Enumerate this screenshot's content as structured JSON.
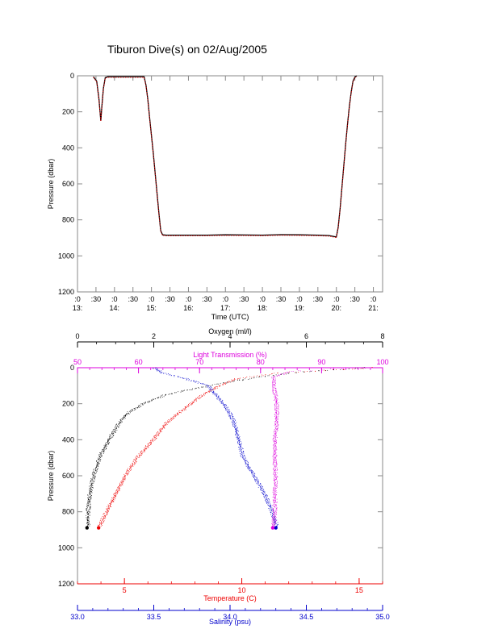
{
  "title": "Tiburon Dive(s) on 02/Aug/2005",
  "colors": {
    "black": "#000000",
    "red": "#ee0000",
    "blue": "#0000cc",
    "magenta": "#dd00dd"
  },
  "chart_data": [
    {
      "type": "line",
      "xlabel": "Time (UTC)",
      "ylabel": "Pressure (dbar)",
      "ylim": [
        1200,
        0
      ],
      "yticks": [
        "0",
        "200",
        "400",
        "600",
        "800",
        "1000",
        "1200"
      ],
      "xlim": [
        13.0,
        21.25
      ],
      "xticks": [
        {
          "x": 13.0,
          "top": ":0",
          "bottom": "13:"
        },
        {
          "x": 13.5,
          "top": ":30",
          "bottom": ""
        },
        {
          "x": 14.0,
          "top": ":0",
          "bottom": "14:"
        },
        {
          "x": 14.5,
          "top": ":30",
          "bottom": ""
        },
        {
          "x": 15.0,
          "top": ":0",
          "bottom": "15:"
        },
        {
          "x": 15.5,
          "top": ":30",
          "bottom": ""
        },
        {
          "x": 16.0,
          "top": ":0",
          "bottom": "16:"
        },
        {
          "x": 16.5,
          "top": ":30",
          "bottom": ""
        },
        {
          "x": 17.0,
          "top": ":0",
          "bottom": "17:"
        },
        {
          "x": 17.5,
          "top": ":30",
          "bottom": ""
        },
        {
          "x": 18.0,
          "top": ":0",
          "bottom": "18:"
        },
        {
          "x": 18.5,
          "top": ":30",
          "bottom": ""
        },
        {
          "x": 19.0,
          "top": ":0",
          "bottom": "19:"
        },
        {
          "x": 19.5,
          "top": ":30",
          "bottom": ""
        },
        {
          "x": 20.0,
          "top": ":0",
          "bottom": "20:"
        },
        {
          "x": 20.5,
          "top": ":30",
          "bottom": ""
        },
        {
          "x": 21.0,
          "top": ":0",
          "bottom": "21:"
        }
      ],
      "series": [
        {
          "color": "black",
          "x": [
            13.43,
            13.52,
            13.58,
            13.63,
            13.66,
            13.7,
            13.75,
            13.82,
            14.0,
            14.3,
            14.5,
            14.8,
            14.85,
            14.9,
            14.95,
            15.0,
            15.05,
            15.1,
            15.15,
            15.2,
            15.25,
            15.3,
            15.4,
            15.6,
            16.0,
            16.5,
            17.0,
            17.5,
            18.0,
            18.5,
            19.0,
            19.5,
            19.8,
            20.0,
            20.05,
            20.1,
            20.15,
            20.2,
            20.25,
            20.3,
            20.35,
            20.4,
            20.45,
            20.5,
            20.55
          ],
          "y": [
            5,
            30,
            130,
            250,
            170,
            70,
            10,
            5,
            5,
            5,
            5,
            5,
            50,
            130,
            230,
            330,
            430,
            540,
            650,
            760,
            860,
            883,
            885,
            885,
            885,
            885,
            883,
            884,
            885,
            882,
            883,
            885,
            887,
            895,
            840,
            740,
            620,
            500,
            380,
            270,
            170,
            90,
            30,
            8,
            0
          ]
        },
        {
          "color": "red",
          "x": [
            13.43,
            13.52,
            13.58,
            13.63,
            13.66,
            13.7,
            13.75,
            13.82,
            14.0,
            14.3,
            14.5,
            14.8,
            14.85,
            14.9,
            14.95,
            15.0,
            15.05,
            15.1,
            15.15,
            15.2,
            15.25,
            15.3,
            15.4,
            15.6,
            16.0,
            16.5,
            17.0,
            17.5,
            18.0,
            18.5,
            19.0,
            19.5,
            19.8,
            20.0,
            20.05,
            20.1,
            20.15,
            20.2,
            20.25,
            20.3,
            20.35,
            20.4,
            20.45,
            20.5,
            20.55
          ],
          "y": [
            5,
            30,
            130,
            250,
            170,
            70,
            10,
            5,
            5,
            5,
            5,
            5,
            50,
            130,
            230,
            330,
            430,
            540,
            650,
            760,
            860,
            883,
            885,
            885,
            885,
            885,
            883,
            884,
            885,
            882,
            883,
            885,
            887,
            895,
            840,
            740,
            620,
            500,
            380,
            270,
            170,
            90,
            30,
            8,
            0
          ]
        }
      ]
    },
    {
      "type": "scatter",
      "ylabel": "Pressure (dbar)",
      "ylim": [
        1200,
        0
      ],
      "yticks": [
        "0",
        "200",
        "400",
        "600",
        "800",
        "1000",
        "1200"
      ],
      "axes": [
        {
          "label": "Oxygen (ml/l)",
          "position": "top",
          "color": "black",
          "range": [
            0,
            8
          ],
          "ticks": [
            0,
            2,
            4,
            6,
            8
          ],
          "tick_labels": [
            "0",
            "2",
            "4",
            "6",
            "8"
          ]
        },
        {
          "label": "Light Transmission (%)",
          "position": "top",
          "color": "magenta",
          "range": [
            50,
            100
          ],
          "ticks": [
            50,
            60,
            70,
            80,
            90,
            100
          ],
          "tick_labels": [
            "50",
            "60",
            "70",
            "80",
            "90",
            "100"
          ]
        },
        {
          "label": "Temperature (C)",
          "position": "bottom",
          "color": "red",
          "range": [
            3,
            16
          ],
          "ticks": [
            5,
            10,
            15
          ],
          "tick_labels": [
            "5",
            "10",
            "15"
          ]
        },
        {
          "label": "Salinity (psu)",
          "position": "bottom",
          "color": "blue",
          "range": [
            33.0,
            35.0
          ],
          "ticks": [
            33.0,
            33.5,
            34.0,
            34.5,
            35.0
          ],
          "tick_labels": [
            "33.0",
            "33.5",
            "34.0",
            "34.5",
            "35.0"
          ]
        }
      ],
      "series": [
        {
          "axis": 0,
          "color": "black",
          "pressure": [
            0,
            30,
            60,
            100,
            150,
            200,
            250,
            300,
            400,
            500,
            600,
            700,
            800,
            880
          ],
          "values": [
            7.5,
            5.5,
            4.5,
            3.4,
            2.3,
            1.7,
            1.3,
            1.1,
            0.8,
            0.55,
            0.4,
            0.3,
            0.25,
            0.25
          ]
        },
        {
          "axis": 2,
          "color": "red",
          "pressure": [
            0,
            30,
            60,
            100,
            150,
            200,
            250,
            300,
            400,
            500,
            600,
            700,
            800,
            880
          ],
          "values": [
            15.5,
            11.5,
            9.8,
            9.0,
            8.3,
            7.8,
            7.3,
            6.8,
            6.2,
            5.5,
            5.0,
            4.6,
            4.2,
            3.9
          ]
        },
        {
          "axis": 3,
          "color": "blue",
          "pressure": [
            0,
            30,
            60,
            100,
            150,
            200,
            250,
            300,
            400,
            500,
            600,
            700,
            800,
            880
          ],
          "values": [
            33.5,
            33.55,
            33.7,
            33.85,
            33.9,
            33.95,
            33.99,
            34.02,
            34.05,
            34.08,
            34.15,
            34.22,
            34.27,
            34.3
          ]
        },
        {
          "axis": 1,
          "color": "magenta",
          "pressure": [
            0,
            20,
            50,
            100,
            200,
            300,
            400,
            500,
            600,
            700,
            800,
            880
          ],
          "values": [
            97,
            85,
            82,
            82,
            82.5,
            82.5,
            82.2,
            82.2,
            82.3,
            82.2,
            82.2,
            82.0
          ]
        }
      ]
    }
  ]
}
